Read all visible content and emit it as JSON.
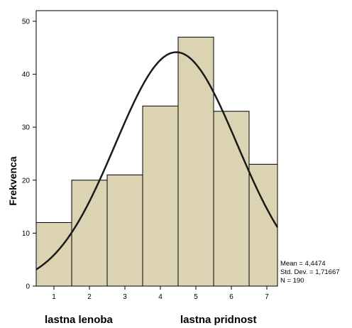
{
  "chart_data": {
    "type": "bar",
    "subtype": "histogram",
    "categories": [
      "1",
      "2",
      "3",
      "4",
      "5",
      "6",
      "7"
    ],
    "values": [
      12,
      20,
      21,
      34,
      47,
      33,
      23
    ],
    "ylabel": "Frekvenca",
    "ylim": [
      0,
      52
    ],
    "yticks": [
      0,
      10,
      20,
      30,
      40,
      50
    ],
    "xlim": [
      0.5,
      7.3
    ],
    "grid": false,
    "bar_color": "#dcd3b2",
    "normal_curve": {
      "mean": 4.4474,
      "sd": 1.71667,
      "n": 190
    },
    "stats": {
      "mean": "Mean = 4,4474",
      "sd": "Std. Dev. = 1,71667",
      "n": "N = 190"
    },
    "x_end_labels": {
      "left": "lastna lenoba",
      "right": "lastna pridnost"
    }
  }
}
